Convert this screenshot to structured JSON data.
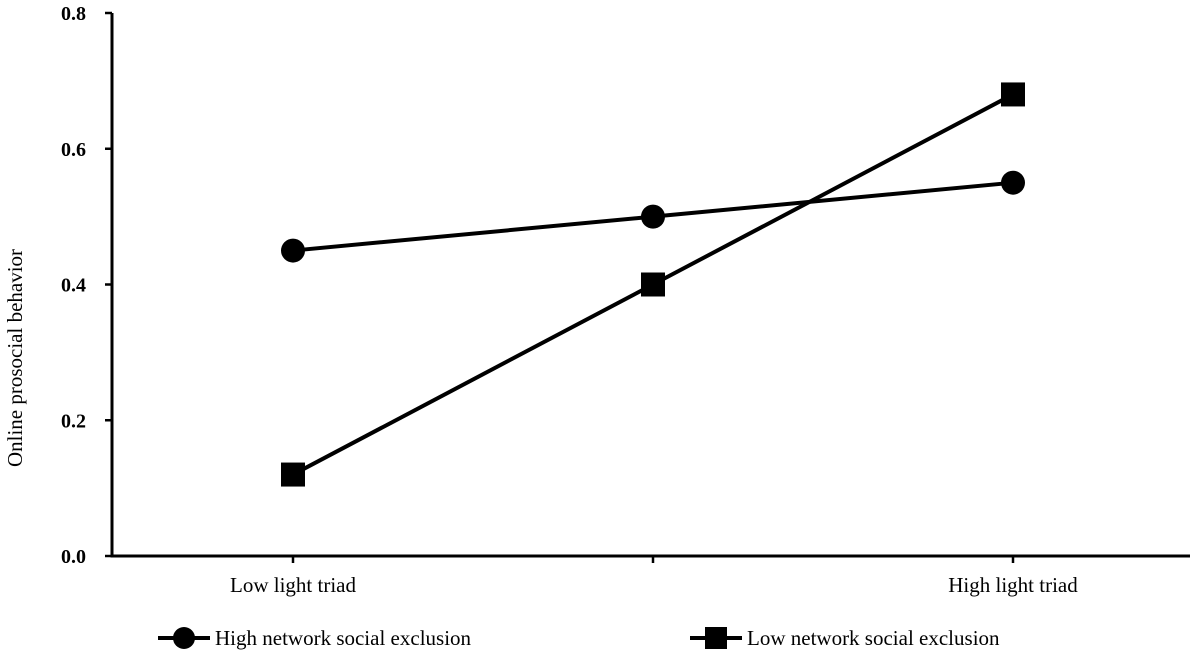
{
  "chart_data": {
    "type": "line",
    "title": "",
    "xlabel": "",
    "ylabel": "Online prosocial behavior",
    "categories": [
      "Low light triad",
      "",
      "High light triad"
    ],
    "ylim": [
      0,
      0.8
    ],
    "yticks": [
      "0.0",
      "0.2",
      "0.4",
      "0.6",
      "0.8"
    ],
    "grid": false,
    "legend_position": "bottom",
    "series": [
      {
        "name": "High network social exclusion",
        "marker": "circle",
        "values": [
          0.45,
          0.5,
          0.55
        ],
        "color": "#000000"
      },
      {
        "name": "Low network social exclusion",
        "marker": "square",
        "values": [
          0.12,
          0.4,
          0.68
        ],
        "color": "#000000"
      }
    ]
  }
}
